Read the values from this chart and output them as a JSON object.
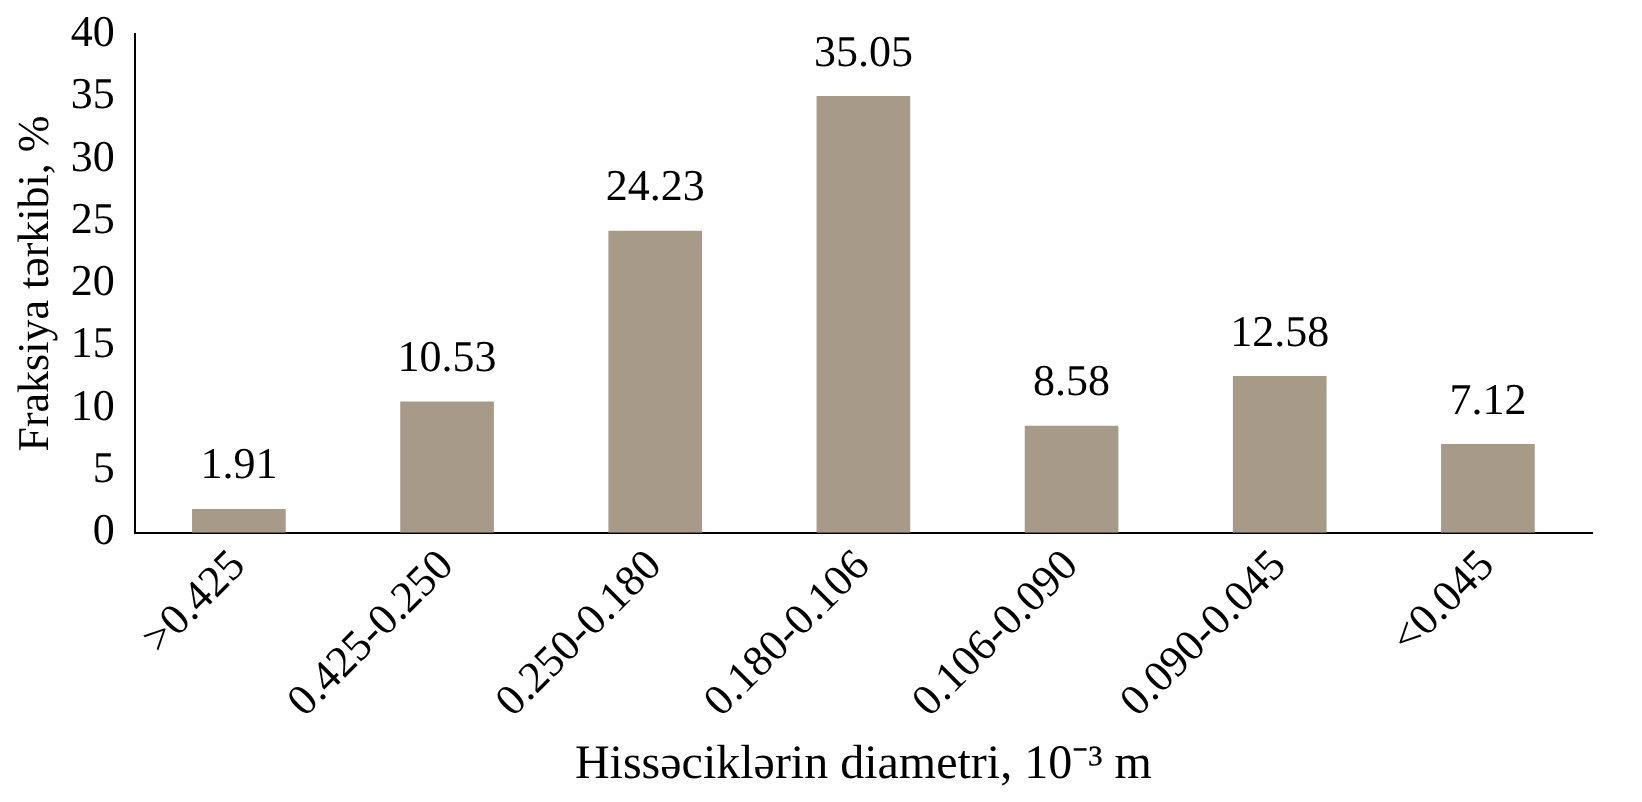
{
  "chart_data": {
    "type": "bar",
    "xlabel": "Hissəciklərin diametri, 10⁻³ m",
    "ylabel": "Fraksiya tərkibi, %",
    "categories": [
      ">0.425",
      "0.425-0.250",
      "0.250-0.180",
      "0.180-0.106",
      "0.106-0.090",
      "0.090-0.045",
      "<0.045"
    ],
    "values": [
      1.91,
      10.53,
      24.23,
      35.05,
      8.58,
      12.58,
      7.12
    ],
    "color": "#a89a88",
    "ylim": [
      0,
      40
    ],
    "yticks": [
      0,
      5,
      10,
      15,
      20,
      25,
      30,
      35,
      40
    ],
    "grid": false,
    "legend": false,
    "data_labels": true
  }
}
